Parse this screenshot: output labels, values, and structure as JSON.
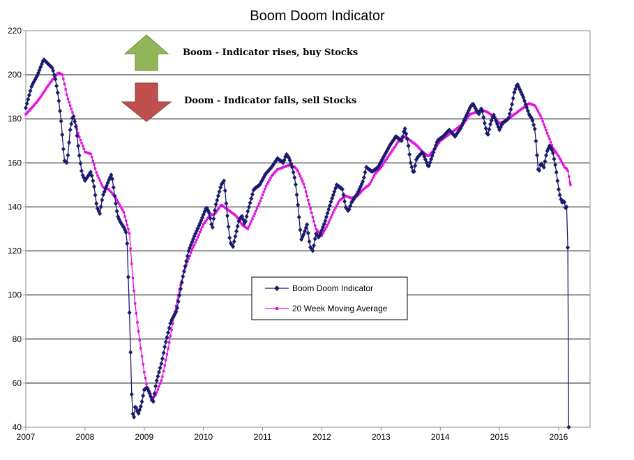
{
  "chart_data": {
    "type": "line",
    "title": "Boom Doom Indicator",
    "xlabel": "",
    "ylabel": "",
    "xlim": [
      2007,
      2016.53
    ],
    "ylim": [
      40,
      220
    ],
    "x_ticks": [
      "2007",
      "2008",
      "2009",
      "2010",
      "2011",
      "2012",
      "2013",
      "2014",
      "2015",
      "2016"
    ],
    "y_ticks": [
      40,
      60,
      80,
      100,
      120,
      140,
      160,
      180,
      200,
      220
    ],
    "grid": true,
    "legend_position": "center",
    "series": [
      {
        "name": "Boom Doom Indicator",
        "color": "#1a1a6e",
        "marker": "diamond",
        "anchors": [
          [
            2007.0,
            185
          ],
          [
            2007.1,
            195
          ],
          [
            2007.2,
            200
          ],
          [
            2007.3,
            207
          ],
          [
            2007.45,
            203
          ],
          [
            2007.5,
            198
          ],
          [
            2007.55,
            190
          ],
          [
            2007.6,
            178
          ],
          [
            2007.65,
            161
          ],
          [
            2007.7,
            160
          ],
          [
            2007.75,
            175
          ],
          [
            2007.8,
            182
          ],
          [
            2007.85,
            176
          ],
          [
            2007.9,
            164
          ],
          [
            2007.95,
            155
          ],
          [
            2008.0,
            152
          ],
          [
            2008.1,
            156
          ],
          [
            2008.15,
            150
          ],
          [
            2008.2,
            140
          ],
          [
            2008.25,
            137
          ],
          [
            2008.3,
            145
          ],
          [
            2008.4,
            152
          ],
          [
            2008.45,
            155
          ],
          [
            2008.5,
            145
          ],
          [
            2008.55,
            136
          ],
          [
            2008.6,
            133
          ],
          [
            2008.65,
            131
          ],
          [
            2008.7,
            128
          ],
          [
            2008.72,
            120
          ],
          [
            2008.74,
            98
          ],
          [
            2008.76,
            86
          ],
          [
            2008.78,
            60
          ],
          [
            2008.8,
            48
          ],
          [
            2008.82,
            43
          ],
          [
            2008.85,
            50
          ],
          [
            2008.9,
            46
          ],
          [
            2008.95,
            50
          ],
          [
            2009.0,
            57
          ],
          [
            2009.05,
            58
          ],
          [
            2009.1,
            55
          ],
          [
            2009.15,
            51
          ],
          [
            2009.2,
            60
          ],
          [
            2009.3,
            70
          ],
          [
            2009.35,
            77
          ],
          [
            2009.45,
            88
          ],
          [
            2009.55,
            93
          ],
          [
            2009.65,
            108
          ],
          [
            2009.75,
            120
          ],
          [
            2009.85,
            127
          ],
          [
            2009.95,
            133
          ],
          [
            2010.05,
            140
          ],
          [
            2010.1,
            137
          ],
          [
            2010.15,
            130
          ],
          [
            2010.2,
            140
          ],
          [
            2010.25,
            145
          ],
          [
            2010.3,
            150
          ],
          [
            2010.35,
            152
          ],
          [
            2010.4,
            137
          ],
          [
            2010.45,
            124
          ],
          [
            2010.5,
            122
          ],
          [
            2010.55,
            128
          ],
          [
            2010.6,
            134
          ],
          [
            2010.65,
            136
          ],
          [
            2010.7,
            132
          ],
          [
            2010.75,
            138
          ],
          [
            2010.85,
            148
          ],
          [
            2010.95,
            150
          ],
          [
            2011.05,
            155
          ],
          [
            2011.15,
            158
          ],
          [
            2011.25,
            162
          ],
          [
            2011.35,
            160
          ],
          [
            2011.4,
            164
          ],
          [
            2011.45,
            162
          ],
          [
            2011.5,
            158
          ],
          [
            2011.55,
            152
          ],
          [
            2011.6,
            140
          ],
          [
            2011.65,
            125
          ],
          [
            2011.7,
            128
          ],
          [
            2011.75,
            132
          ],
          [
            2011.8,
            122
          ],
          [
            2011.85,
            120
          ],
          [
            2011.9,
            128
          ],
          [
            2011.95,
            126
          ],
          [
            2012.05,
            133
          ],
          [
            2012.15,
            142
          ],
          [
            2012.25,
            150
          ],
          [
            2012.35,
            148
          ],
          [
            2012.4,
            140
          ],
          [
            2012.45,
            138
          ],
          [
            2012.5,
            142
          ],
          [
            2012.6,
            146
          ],
          [
            2012.7,
            152
          ],
          [
            2012.75,
            158
          ],
          [
            2012.85,
            156
          ],
          [
            2012.95,
            158
          ],
          [
            2013.05,
            163
          ],
          [
            2013.15,
            168
          ],
          [
            2013.25,
            172
          ],
          [
            2013.35,
            170
          ],
          [
            2013.4,
            176
          ],
          [
            2013.45,
            170
          ],
          [
            2013.5,
            160
          ],
          [
            2013.55,
            155
          ],
          [
            2013.6,
            162
          ],
          [
            2013.7,
            165
          ],
          [
            2013.8,
            158
          ],
          [
            2013.85,
            162
          ],
          [
            2013.95,
            170
          ],
          [
            2014.05,
            172
          ],
          [
            2014.15,
            175
          ],
          [
            2014.25,
            172
          ],
          [
            2014.35,
            176
          ],
          [
            2014.45,
            182
          ],
          [
            2014.5,
            185
          ],
          [
            2014.55,
            187
          ],
          [
            2014.65,
            182
          ],
          [
            2014.7,
            185
          ],
          [
            2014.75,
            178
          ],
          [
            2014.8,
            172
          ],
          [
            2014.85,
            178
          ],
          [
            2014.9,
            182
          ],
          [
            2015.0,
            175
          ],
          [
            2015.05,
            178
          ],
          [
            2015.15,
            180
          ],
          [
            2015.2,
            185
          ],
          [
            2015.25,
            192
          ],
          [
            2015.3,
            196
          ],
          [
            2015.35,
            193
          ],
          [
            2015.4,
            190
          ],
          [
            2015.45,
            186
          ],
          [
            2015.5,
            182
          ],
          [
            2015.55,
            180
          ],
          [
            2015.6,
            175
          ],
          [
            2015.63,
            165
          ],
          [
            2015.66,
            155
          ],
          [
            2015.7,
            160
          ],
          [
            2015.75,
            158
          ],
          [
            2015.8,
            165
          ],
          [
            2015.85,
            168
          ],
          [
            2015.9,
            165
          ],
          [
            2015.95,
            158
          ],
          [
            2016.0,
            148
          ],
          [
            2016.03,
            144
          ],
          [
            2016.06,
            142
          ],
          [
            2016.09,
            143
          ],
          [
            2016.12,
            139
          ],
          [
            2016.15,
            141
          ],
          [
            2016.17,
            40
          ]
        ]
      },
      {
        "name": "20 Week Moving Average",
        "color": "#e010e0",
        "marker": "square",
        "anchors": [
          [
            2007.0,
            182
          ],
          [
            2007.2,
            188
          ],
          [
            2007.4,
            196
          ],
          [
            2007.55,
            201
          ],
          [
            2007.62,
            200
          ],
          [
            2007.7,
            190
          ],
          [
            2007.8,
            182
          ],
          [
            2007.9,
            172
          ],
          [
            2008.0,
            165
          ],
          [
            2008.1,
            164
          ],
          [
            2008.2,
            155
          ],
          [
            2008.3,
            149
          ],
          [
            2008.4,
            148
          ],
          [
            2008.5,
            145
          ],
          [
            2008.65,
            138
          ],
          [
            2008.75,
            128
          ],
          [
            2008.8,
            110
          ],
          [
            2008.85,
            95
          ],
          [
            2008.92,
            80
          ],
          [
            2009.0,
            65
          ],
          [
            2009.05,
            58
          ],
          [
            2009.12,
            52
          ],
          [
            2009.2,
            55
          ],
          [
            2009.3,
            62
          ],
          [
            2009.4,
            75
          ],
          [
            2009.5,
            90
          ],
          [
            2009.6,
            103
          ],
          [
            2009.7,
            113
          ],
          [
            2009.8,
            120
          ],
          [
            2009.9,
            126
          ],
          [
            2010.0,
            132
          ],
          [
            2010.1,
            136
          ],
          [
            2010.2,
            137
          ],
          [
            2010.3,
            141
          ],
          [
            2010.35,
            140
          ],
          [
            2010.45,
            138
          ],
          [
            2010.55,
            136
          ],
          [
            2010.65,
            132
          ],
          [
            2010.75,
            130
          ],
          [
            2010.85,
            136
          ],
          [
            2010.95,
            142
          ],
          [
            2011.05,
            149
          ],
          [
            2011.15,
            154
          ],
          [
            2011.25,
            157
          ],
          [
            2011.35,
            158
          ],
          [
            2011.45,
            159
          ],
          [
            2011.55,
            158
          ],
          [
            2011.6,
            156
          ],
          [
            2011.7,
            150
          ],
          [
            2011.8,
            140
          ],
          [
            2011.9,
            130
          ],
          [
            2012.0,
            127
          ],
          [
            2012.1,
            132
          ],
          [
            2012.2,
            138
          ],
          [
            2012.3,
            143
          ],
          [
            2012.4,
            145
          ],
          [
            2012.5,
            144
          ],
          [
            2012.6,
            145
          ],
          [
            2012.7,
            148
          ],
          [
            2012.8,
            150
          ],
          [
            2012.9,
            155
          ],
          [
            2013.0,
            158
          ],
          [
            2013.1,
            162
          ],
          [
            2013.2,
            166
          ],
          [
            2013.3,
            170
          ],
          [
            2013.4,
            172
          ],
          [
            2013.5,
            170
          ],
          [
            2013.6,
            168
          ],
          [
            2013.7,
            165
          ],
          [
            2013.8,
            163
          ],
          [
            2013.9,
            166
          ],
          [
            2014.0,
            170
          ],
          [
            2014.1,
            172
          ],
          [
            2014.2,
            174
          ],
          [
            2014.3,
            176
          ],
          [
            2014.4,
            178
          ],
          [
            2014.5,
            182
          ],
          [
            2014.6,
            183
          ],
          [
            2014.7,
            184
          ],
          [
            2014.8,
            183
          ],
          [
            2014.9,
            181
          ],
          [
            2015.0,
            178
          ],
          [
            2015.1,
            179
          ],
          [
            2015.2,
            181
          ],
          [
            2015.3,
            183
          ],
          [
            2015.4,
            185
          ],
          [
            2015.5,
            187
          ],
          [
            2015.6,
            186
          ],
          [
            2015.7,
            181
          ],
          [
            2015.8,
            174
          ],
          [
            2015.9,
            167
          ],
          [
            2016.0,
            163
          ],
          [
            2016.1,
            158
          ],
          [
            2016.15,
            157
          ],
          [
            2016.2,
            150
          ]
        ]
      }
    ],
    "annotations": [
      {
        "text": "Boom - Indicator rises, buy Stocks",
        "arrow": "up",
        "color": "#92b55a"
      },
      {
        "text": "Doom - Indicator falls, sell Stocks",
        "arrow": "down",
        "color": "#c0504d"
      }
    ]
  }
}
